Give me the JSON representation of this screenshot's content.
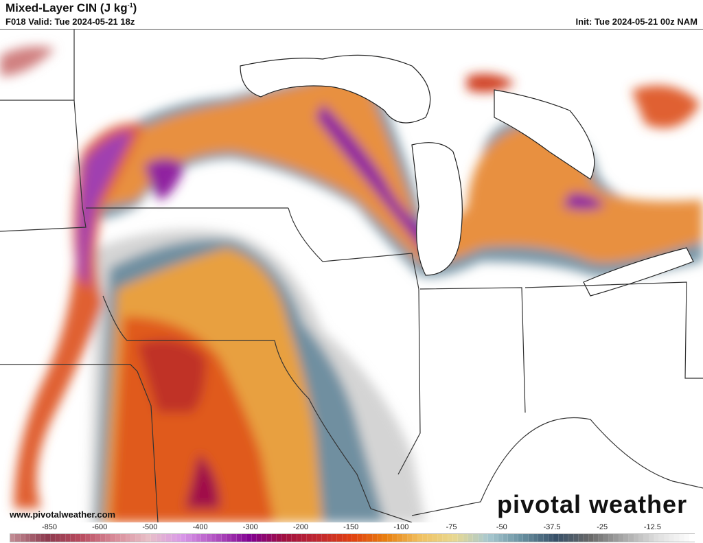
{
  "header": {
    "title": "Mixed-Layer CIN (J kg",
    "title_sup": "-1",
    "title_end": ")",
    "valid": "F018 Valid: Tue 2024-05-21 18z",
    "init": "Init: Tue 2024-05-21 00z NAM"
  },
  "watermark": {
    "url": "www.pivotalweather.com",
    "logo": "pivotal weather"
  },
  "colorbar": {
    "labels": [
      "-850",
      "-600",
      "-500",
      "-400",
      "-300",
      "-200",
      "-150",
      "-100",
      "-75",
      "-50",
      "-37.5",
      "-25",
      "-12.5"
    ],
    "anchors": [
      "#c08a92",
      "#8c3a4e",
      "#b84a5e",
      "#d88a98",
      "#e8c0c8",
      "#d898e8",
      "#b050c0",
      "#800090",
      "#a01040",
      "#c02830",
      "#e04010",
      "#e88010",
      "#f0c060",
      "#e8d890",
      "#a8c8d0",
      "#6890a0",
      "#385068",
      "#686868",
      "#a8a8a8",
      "#e0e0e0",
      "#ffffff"
    ]
  }
}
